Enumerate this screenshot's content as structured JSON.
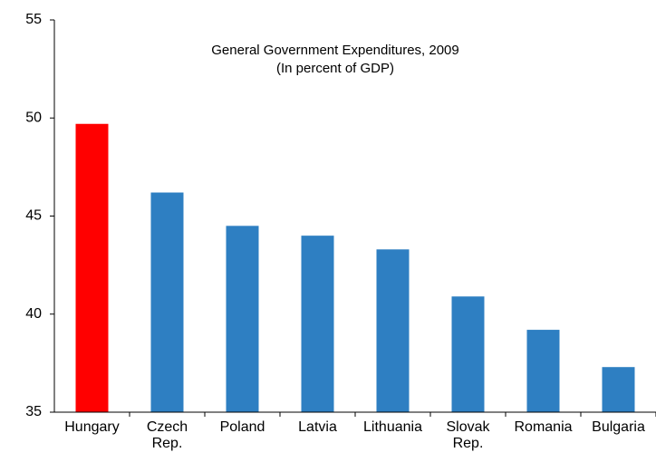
{
  "chart_data": {
    "type": "bar",
    "title": "General Government Expenditures,  2009",
    "subtitle": "(In percent of GDP)",
    "categories": [
      "Hungary",
      "Czech Rep.",
      "Poland",
      "Latvia",
      "Lithuania",
      "Slovak Rep.",
      "Romania",
      "Bulgaria"
    ],
    "values": [
      49.7,
      46.2,
      44.5,
      44.0,
      43.3,
      40.9,
      39.2,
      37.3
    ],
    "colors": [
      "#ff0000",
      "#2e7fc2",
      "#2e7fc2",
      "#2e7fc2",
      "#2e7fc2",
      "#2e7fc2",
      "#2e7fc2",
      "#2e7fc2"
    ],
    "ylim": [
      35,
      55
    ],
    "yticks": [
      35,
      40,
      45,
      50,
      55
    ],
    "grid": false
  }
}
